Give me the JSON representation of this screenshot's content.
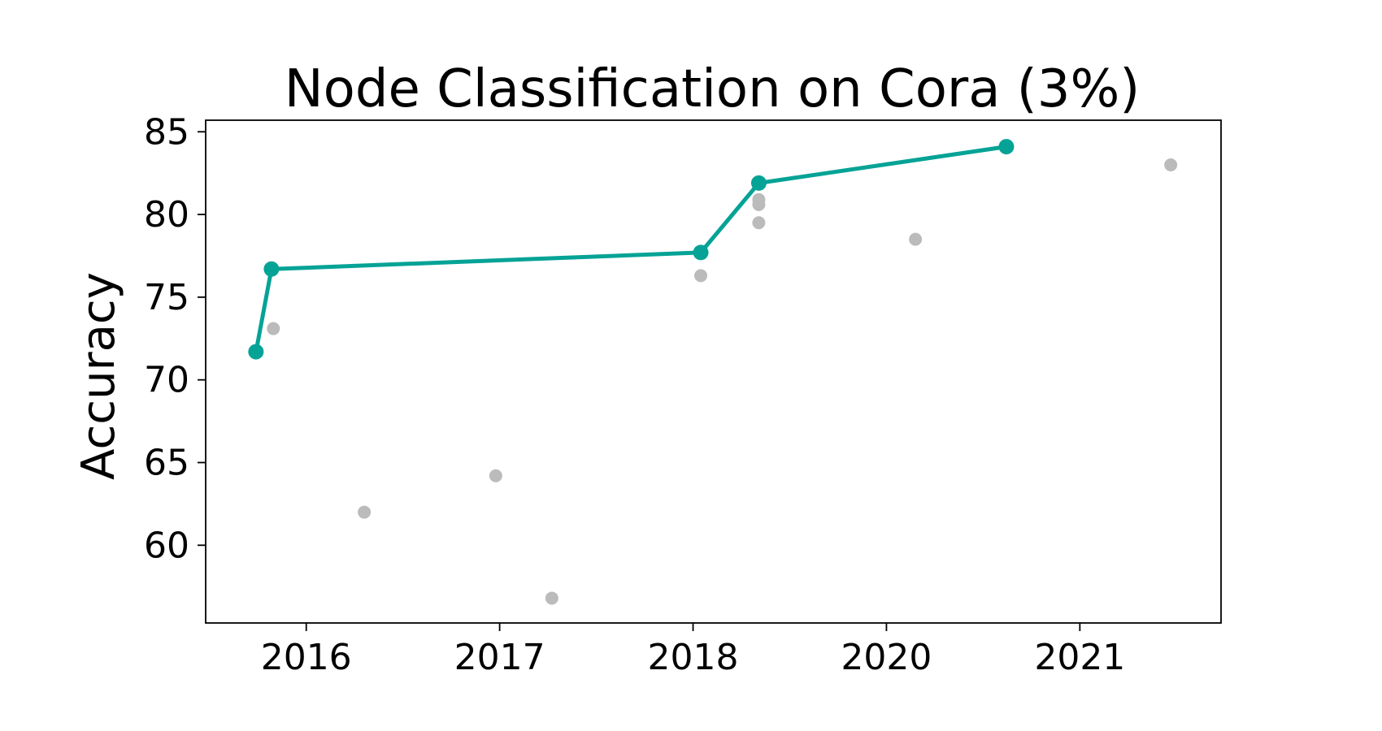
{
  "chart_data": {
    "type": "scatter",
    "title": "Node Classification on Cora (3%)",
    "xlabel": "",
    "ylabel": "Accuracy",
    "xlim": [
      2015.48,
      2020.73
    ],
    "ylim": [
      55.3,
      85.7
    ],
    "x_ticks": [
      {
        "label": "2016",
        "value": 2016.0
      },
      {
        "label": "2017",
        "value": 2017.0
      },
      {
        "label": "2018",
        "value": 2018.0
      },
      {
        "label": "2020",
        "value": 2019.0
      },
      {
        "label": "2021",
        "value": 2020.0
      }
    ],
    "y_ticks": [
      60,
      65,
      70,
      75,
      80,
      85
    ],
    "grid": false,
    "series": [
      {
        "style": "scatter",
        "color": "#bbbbbb",
        "points": [
          {
            "x": 2015.83,
            "y": 73.1
          },
          {
            "x": 2016.3,
            "y": 62.0
          },
          {
            "x": 2016.98,
            "y": 64.2
          },
          {
            "x": 2017.27,
            "y": 56.8
          },
          {
            "x": 2018.04,
            "y": 76.3
          },
          {
            "x": 2018.34,
            "y": 80.9
          },
          {
            "x": 2018.34,
            "y": 80.6
          },
          {
            "x": 2018.34,
            "y": 79.5
          },
          {
            "x": 2019.15,
            "y": 78.5
          },
          {
            "x": 2020.47,
            "y": 83.0
          }
        ]
      },
      {
        "style": "line",
        "color": "#05a396",
        "points": [
          {
            "x": 2015.74,
            "y": 71.7
          },
          {
            "x": 2015.82,
            "y": 76.7
          },
          {
            "x": 2018.04,
            "y": 77.7
          },
          {
            "x": 2018.34,
            "y": 81.9
          },
          {
            "x": 2019.62,
            "y": 84.1
          }
        ]
      }
    ]
  }
}
